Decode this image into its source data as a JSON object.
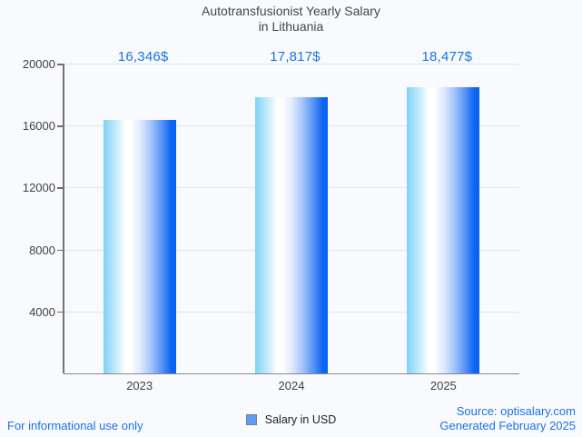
{
  "chart_data": {
    "type": "bar",
    "title": "Autotransfusionist Yearly Salary in Lithuania",
    "title_lines": [
      "Autotransfusionist Yearly Salary",
      "in Lithuania"
    ],
    "categories": [
      "2023",
      "2024",
      "2025"
    ],
    "values": [
      16346,
      17817,
      18477
    ],
    "value_labels": [
      "16,346$",
      "17,817$",
      "18,477$"
    ],
    "series_name": "Salary in USD",
    "xlabel": "",
    "ylabel": "",
    "ylim": [
      0,
      20000
    ],
    "yticks": [
      4000,
      8000,
      12000,
      16000,
      20000
    ],
    "ytick_labels": [
      "4000",
      "8000",
      "12000",
      "16000",
      "20000"
    ],
    "grid": true,
    "legend_position": "bottom"
  },
  "legend": {
    "label": "Salary in USD"
  },
  "footer": {
    "left": "For informational use only",
    "source": "Source: optisalary.com",
    "generated": "Generated February 2025"
  },
  "colors": {
    "accent_blue": "#1a73e8",
    "bar_gradient_left": "#7fd2f7",
    "bar_gradient_middle": "#ffffff",
    "bar_gradient_right": "#0a62f0",
    "legend_swatch": "#5f9cf5",
    "title_text": "#444746",
    "axis_text": "#424242",
    "gridline": "#e3e5e8",
    "background": "#f9fafd"
  }
}
